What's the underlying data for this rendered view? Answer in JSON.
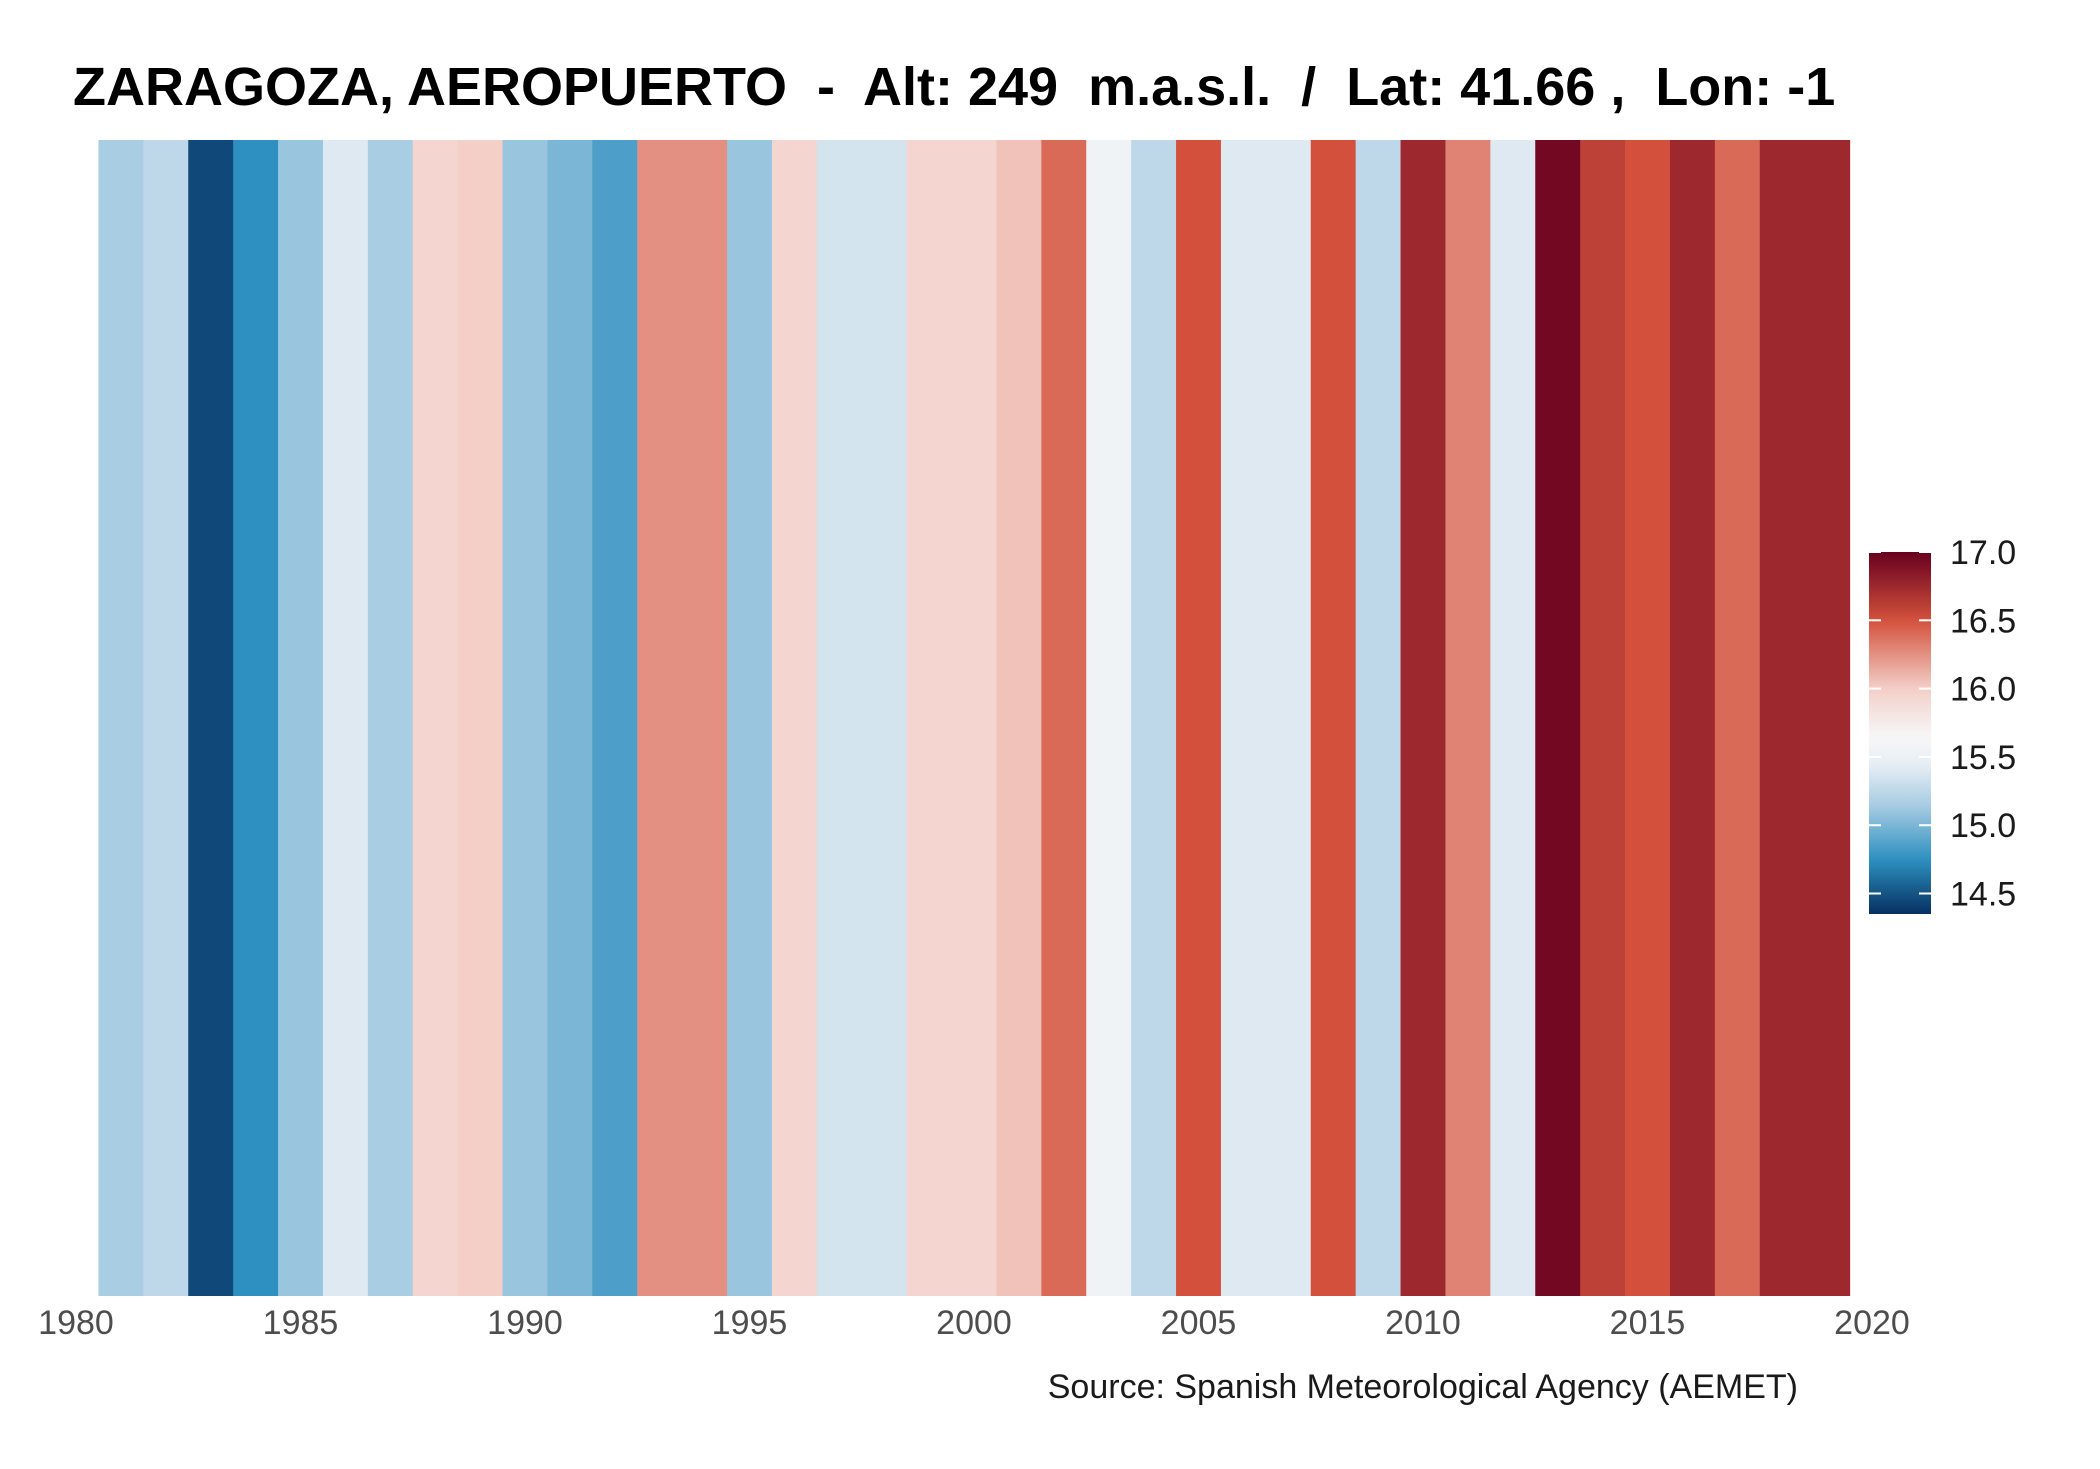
{
  "chart_data": {
    "type": "heatmap",
    "title": "ZARAGOZA, AEROPUERTO  -  Alt: 249  m.a.s.l.  /  Lat: 41.66 ,  Lon: -1",
    "caption": "Source: Spanish Meteorological Agency (AEMET)",
    "xlabel": "",
    "ylabel": "",
    "xlim": [
      1980,
      2020
    ],
    "x_ticks": [
      1980,
      1985,
      1990,
      1995,
      2000,
      2005,
      2010,
      2015,
      2020
    ],
    "years": [
      1981,
      1982,
      1983,
      1984,
      1985,
      1986,
      1987,
      1988,
      1989,
      1990,
      1991,
      1992,
      1993,
      1994,
      1995,
      1996,
      1997,
      1998,
      1999,
      2000,
      2001,
      2002,
      2003,
      2004,
      2005,
      2006,
      2007,
      2008,
      2009,
      2010,
      2011,
      2012,
      2013,
      2014,
      2015,
      2016,
      2017,
      2018,
      2019
    ],
    "values": [
      15.15,
      15.25,
      14.45,
      14.75,
      15.1,
      15.4,
      15.15,
      15.95,
      16.0,
      15.1,
      15.0,
      14.85,
      16.25,
      16.25,
      15.1,
      15.95,
      15.35,
      15.35,
      15.95,
      15.95,
      16.05,
      16.4,
      15.55,
      15.25,
      16.5,
      15.4,
      15.4,
      16.5,
      15.25,
      16.75,
      16.3,
      15.4,
      16.95,
      16.6,
      16.5,
      16.75,
      16.4,
      16.75,
      16.75
    ],
    "legend": {
      "position": "right",
      "min": 14.35,
      "max": 17.0,
      "ticks": [
        "17.0",
        "16.5",
        "16.0",
        "15.5",
        "15.0",
        "14.5"
      ],
      "tick_values": [
        17.0,
        16.5,
        16.0,
        15.5,
        15.0,
        14.5
      ]
    },
    "palette": {
      "stops": [
        14.35,
        14.75,
        15.15,
        15.45,
        15.65,
        16.0,
        16.5,
        17.0
      ],
      "colors": [
        "#053061",
        "#2e90c0",
        "#a9cde3",
        "#e8eff5",
        "#f7f7f7",
        "#f3cfc8",
        "#d3513c",
        "#67001f"
      ]
    },
    "grid": false
  }
}
